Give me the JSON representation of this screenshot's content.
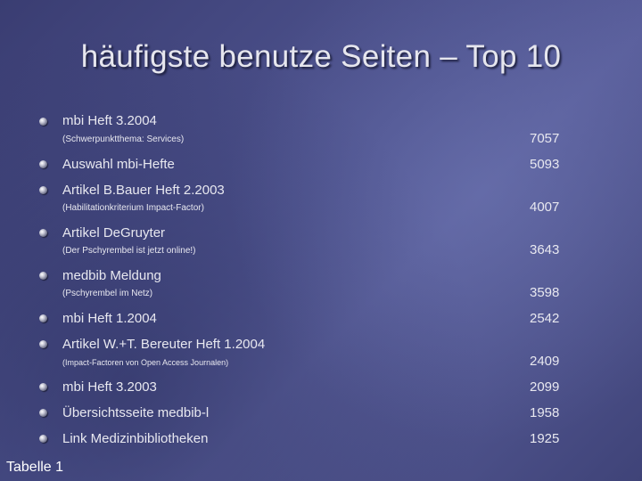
{
  "title": "häufigste benutze Seiten – Top 10",
  "items": [
    {
      "label": "mbi Heft 3.2004",
      "sub": "(Schwerpunktthema: Services)",
      "value": "7057"
    },
    {
      "label": "Auswahl mbi-Hefte",
      "sub": "",
      "value": "5093"
    },
    {
      "label": "Artikel B.Bauer Heft 2.2003",
      "sub": "(Habilitationkriterium Impact-Factor)",
      "value": "4007"
    },
    {
      "label": "Artikel DeGruyter",
      "sub": "(Der Pschyrembel ist jetzt online!)",
      "value": "3643"
    },
    {
      "label": "medbib Meldung",
      "sub": "(Pschyrembel im Netz)",
      "value": "3598"
    },
    {
      "label": "mbi Heft 1.2004",
      "sub": "",
      "value": "2542"
    },
    {
      "label": "Artikel W.+T. Bereuter Heft 1.2004",
      "sub": "(Impact-Factoren von Open Access Journalen)",
      "value": "2409"
    },
    {
      "label": "mbi Heft 3.2003",
      "sub": "",
      "value": "2099"
    },
    {
      "label": "Übersichtsseite medbib-l",
      "sub": "",
      "value": "1958"
    },
    {
      "label": "Link Medizinbibliotheken",
      "sub": "",
      "value": "1925"
    }
  ],
  "caption": "Tabelle 1"
}
